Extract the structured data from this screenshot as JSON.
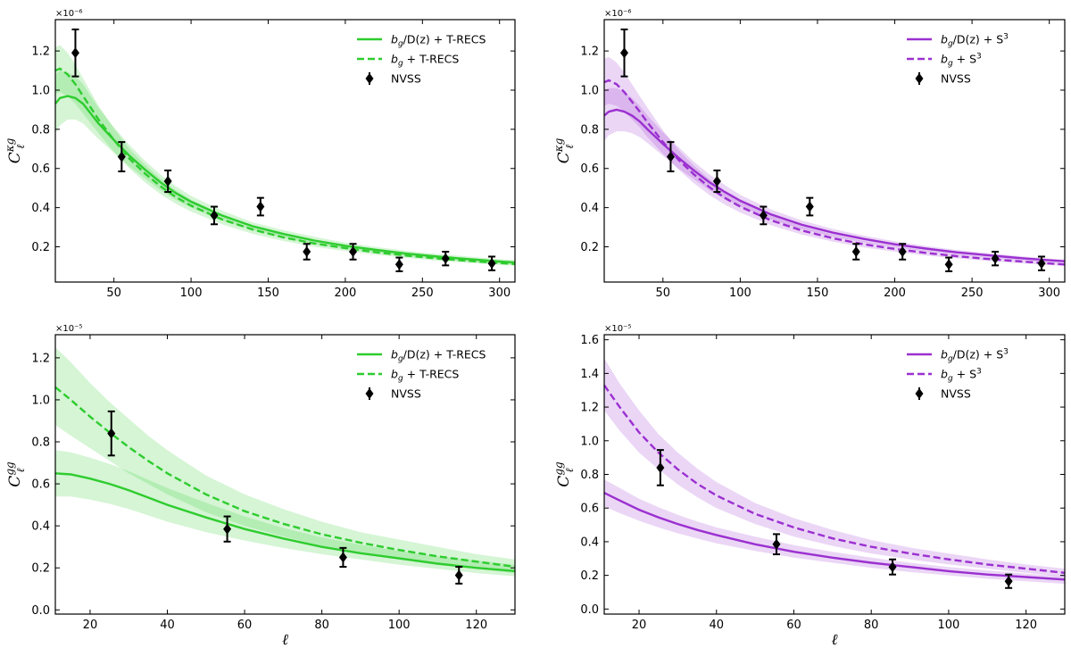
{
  "chart_data": [
    {
      "id": "kg_trecs",
      "type": "line",
      "ylabel": "C_ℓ^κg",
      "xlabel": "",
      "offset_label": "×10⁻⁶",
      "xlim": [
        12,
        310
      ],
      "ylim": [
        0.02,
        1.36
      ],
      "xticks": [
        50,
        100,
        150,
        200,
        250,
        300
      ],
      "xtick_labels": [
        "50",
        "100",
        "150",
        "200",
        "250",
        "300"
      ],
      "yticks": [
        0.2,
        0.4,
        0.6,
        0.8,
        1.0,
        1.2
      ],
      "ytick_labels": [
        "0.2",
        "0.4",
        "0.6",
        "0.8",
        "1.0",
        "1.2"
      ],
      "color": "#2ecc2e",
      "series": [
        {
          "name": "solid",
          "legend_label": "b_g/D(z) + T-RECS",
          "style": "solid",
          "x": [
            12,
            15,
            20,
            25,
            30,
            35,
            40,
            50,
            60,
            70,
            80,
            90,
            100,
            120,
            140,
            160,
            180,
            200,
            220,
            240,
            260,
            280,
            300,
            310
          ],
          "y": [
            0.93,
            0.96,
            0.97,
            0.96,
            0.93,
            0.88,
            0.83,
            0.745,
            0.665,
            0.595,
            0.53,
            0.475,
            0.43,
            0.36,
            0.305,
            0.265,
            0.232,
            0.205,
            0.184,
            0.165,
            0.15,
            0.137,
            0.125,
            0.12
          ],
          "lower": [
            0.78,
            0.82,
            0.85,
            0.85,
            0.83,
            0.79,
            0.75,
            0.68,
            0.61,
            0.55,
            0.49,
            0.44,
            0.4,
            0.335,
            0.285,
            0.245,
            0.213,
            0.189,
            0.169,
            0.151,
            0.137,
            0.124,
            0.113,
            0.108
          ],
          "upper": [
            1.08,
            1.1,
            1.09,
            1.07,
            1.03,
            0.97,
            0.91,
            0.81,
            0.72,
            0.64,
            0.57,
            0.51,
            0.46,
            0.385,
            0.325,
            0.285,
            0.251,
            0.221,
            0.199,
            0.179,
            0.163,
            0.15,
            0.137,
            0.132
          ]
        },
        {
          "name": "dashed",
          "legend_label": "b_g + T-RECS",
          "style": "dashed",
          "x": [
            12,
            15,
            20,
            25,
            30,
            35,
            40,
            50,
            60,
            70,
            80,
            90,
            100,
            120,
            140,
            160,
            180,
            200,
            220,
            240,
            260,
            280,
            300,
            310
          ],
          "y": [
            1.1,
            1.11,
            1.08,
            1.03,
            0.97,
            0.91,
            0.85,
            0.745,
            0.65,
            0.575,
            0.51,
            0.455,
            0.41,
            0.34,
            0.288,
            0.248,
            0.217,
            0.193,
            0.172,
            0.155,
            0.14,
            0.128,
            0.117,
            0.112
          ],
          "lower": [
            0.98,
            0.99,
            0.97,
            0.93,
            0.88,
            0.83,
            0.78,
            0.685,
            0.6,
            0.53,
            0.47,
            0.42,
            0.38,
            0.315,
            0.266,
            0.229,
            0.2,
            0.178,
            0.159,
            0.143,
            0.129,
            0.118,
            0.108,
            0.103
          ],
          "upper": [
            1.22,
            1.23,
            1.19,
            1.13,
            1.06,
            0.99,
            0.92,
            0.805,
            0.7,
            0.62,
            0.55,
            0.49,
            0.44,
            0.365,
            0.31,
            0.267,
            0.234,
            0.208,
            0.185,
            0.167,
            0.151,
            0.138,
            0.126,
            0.121
          ]
        }
      ],
      "points": {
        "name": "NVSS",
        "x": [
          25,
          55,
          85,
          115,
          145,
          175,
          205,
          235,
          265,
          295
        ],
        "y": [
          1.19,
          0.66,
          0.535,
          0.36,
          0.405,
          0.175,
          0.175,
          0.11,
          0.14,
          0.115
        ],
        "err": [
          0.12,
          0.075,
          0.055,
          0.045,
          0.045,
          0.04,
          0.04,
          0.035,
          0.035,
          0.035
        ]
      },
      "legend": [
        "b_g/D(z) + T-RECS",
        "b_g + T-RECS",
        "NVSS"
      ]
    },
    {
      "id": "kg_s3",
      "type": "line",
      "ylabel": "C_ℓ^κg",
      "xlabel": "",
      "offset_label": "×10⁻⁶",
      "xlim": [
        12,
        310
      ],
      "ylim": [
        0.02,
        1.36
      ],
      "xticks": [
        50,
        100,
        150,
        200,
        250,
        300
      ],
      "xtick_labels": [
        "50",
        "100",
        "150",
        "200",
        "250",
        "300"
      ],
      "yticks": [
        0.2,
        0.4,
        0.6,
        0.8,
        1.0,
        1.2
      ],
      "ytick_labels": [
        "0.2",
        "0.4",
        "0.6",
        "0.8",
        "1.0",
        "1.2"
      ],
      "color": "#9b30d0",
      "series": [
        {
          "name": "solid",
          "legend_label": "b_g/D(z) + S^3",
          "style": "solid",
          "x": [
            12,
            15,
            20,
            25,
            30,
            35,
            40,
            50,
            60,
            70,
            80,
            90,
            100,
            120,
            140,
            160,
            180,
            200,
            220,
            240,
            260,
            280,
            300,
            310
          ],
          "y": [
            0.87,
            0.89,
            0.9,
            0.89,
            0.87,
            0.84,
            0.8,
            0.725,
            0.655,
            0.59,
            0.53,
            0.48,
            0.435,
            0.365,
            0.312,
            0.272,
            0.24,
            0.213,
            0.191,
            0.172,
            0.157,
            0.143,
            0.131,
            0.126
          ],
          "lower": [
            0.74,
            0.77,
            0.79,
            0.79,
            0.78,
            0.76,
            0.73,
            0.665,
            0.6,
            0.545,
            0.49,
            0.445,
            0.405,
            0.34,
            0.29,
            0.253,
            0.223,
            0.198,
            0.178,
            0.16,
            0.146,
            0.133,
            0.122,
            0.117
          ],
          "upper": [
            1.0,
            1.01,
            1.01,
            0.99,
            0.96,
            0.92,
            0.87,
            0.785,
            0.71,
            0.635,
            0.57,
            0.515,
            0.465,
            0.39,
            0.334,
            0.291,
            0.257,
            0.228,
            0.204,
            0.184,
            0.168,
            0.153,
            0.14,
            0.135
          ]
        },
        {
          "name": "dashed",
          "legend_label": "b_g + S^3",
          "style": "dashed",
          "x": [
            12,
            15,
            20,
            25,
            30,
            35,
            40,
            50,
            60,
            70,
            80,
            90,
            100,
            120,
            140,
            160,
            180,
            200,
            220,
            240,
            260,
            280,
            300,
            310
          ],
          "y": [
            1.04,
            1.05,
            1.03,
            0.99,
            0.94,
            0.89,
            0.835,
            0.735,
            0.645,
            0.57,
            0.505,
            0.45,
            0.405,
            0.335,
            0.283,
            0.244,
            0.213,
            0.189,
            0.169,
            0.152,
            0.138,
            0.126,
            0.115,
            0.11
          ],
          "lower": [
            0.92,
            0.93,
            0.92,
            0.89,
            0.85,
            0.81,
            0.76,
            0.675,
            0.595,
            0.525,
            0.465,
            0.415,
            0.375,
            0.31,
            0.262,
            0.226,
            0.197,
            0.175,
            0.156,
            0.141,
            0.128,
            0.117,
            0.107,
            0.102
          ],
          "upper": [
            1.16,
            1.17,
            1.14,
            1.09,
            1.03,
            0.97,
            0.91,
            0.795,
            0.695,
            0.615,
            0.545,
            0.485,
            0.435,
            0.36,
            0.304,
            0.262,
            0.229,
            0.203,
            0.182,
            0.163,
            0.148,
            0.135,
            0.123,
            0.118
          ]
        }
      ],
      "points": {
        "name": "NVSS",
        "x": [
          25,
          55,
          85,
          115,
          145,
          175,
          205,
          235,
          265,
          295
        ],
        "y": [
          1.19,
          0.66,
          0.535,
          0.36,
          0.405,
          0.175,
          0.175,
          0.11,
          0.14,
          0.115
        ],
        "err": [
          0.12,
          0.075,
          0.055,
          0.045,
          0.045,
          0.04,
          0.04,
          0.035,
          0.035,
          0.035
        ]
      },
      "legend": [
        "b_g/D(z) + S^3",
        "b_g + S^3",
        "NVSS"
      ]
    },
    {
      "id": "gg_trecs",
      "type": "line",
      "ylabel": "C_ℓ^gg",
      "xlabel": "ℓ",
      "offset_label": "×10⁻⁵",
      "xlim": [
        11,
        130
      ],
      "ylim": [
        -0.02,
        1.31
      ],
      "xticks": [
        20,
        40,
        60,
        80,
        100,
        120
      ],
      "xtick_labels": [
        "20",
        "40",
        "60",
        "80",
        "100",
        "120"
      ],
      "yticks": [
        0.0,
        0.2,
        0.4,
        0.6,
        0.8,
        1.0,
        1.2
      ],
      "ytick_labels": [
        "0.0",
        "0.2",
        "0.4",
        "0.6",
        "0.8",
        "1.0",
        "1.2"
      ],
      "color": "#2ecc2e",
      "series": [
        {
          "name": "solid",
          "legend_label": "b_g/D(z) + T-RECS",
          "style": "solid",
          "x": [
            11,
            15,
            20,
            25,
            30,
            35,
            40,
            50,
            60,
            70,
            80,
            90,
            100,
            110,
            120,
            130
          ],
          "y": [
            0.65,
            0.645,
            0.625,
            0.6,
            0.57,
            0.535,
            0.5,
            0.44,
            0.385,
            0.34,
            0.3,
            0.27,
            0.245,
            0.22,
            0.2,
            0.185
          ],
          "lower": [
            0.54,
            0.54,
            0.525,
            0.505,
            0.48,
            0.45,
            0.42,
            0.37,
            0.33,
            0.295,
            0.265,
            0.24,
            0.215,
            0.195,
            0.175,
            0.16
          ],
          "upper": [
            0.76,
            0.75,
            0.725,
            0.695,
            0.66,
            0.62,
            0.58,
            0.51,
            0.445,
            0.39,
            0.345,
            0.31,
            0.28,
            0.255,
            0.235,
            0.215
          ]
        },
        {
          "name": "dashed",
          "legend_label": "b_g + T-RECS",
          "style": "dashed",
          "x": [
            11,
            15,
            20,
            25,
            30,
            35,
            40,
            50,
            60,
            70,
            80,
            90,
            100,
            110,
            120,
            130
          ],
          "y": [
            1.06,
            1.0,
            0.92,
            0.845,
            0.775,
            0.71,
            0.65,
            0.55,
            0.47,
            0.41,
            0.36,
            0.32,
            0.285,
            0.255,
            0.23,
            0.205
          ],
          "lower": [
            0.88,
            0.83,
            0.77,
            0.71,
            0.65,
            0.6,
            0.55,
            0.465,
            0.4,
            0.35,
            0.305,
            0.27,
            0.24,
            0.215,
            0.195,
            0.175
          ],
          "upper": [
            1.25,
            1.18,
            1.08,
            0.99,
            0.91,
            0.83,
            0.76,
            0.64,
            0.55,
            0.48,
            0.42,
            0.37,
            0.335,
            0.3,
            0.265,
            0.24
          ]
        }
      ],
      "points": {
        "name": "NVSS",
        "x": [
          25.5,
          55.5,
          85.5,
          115.5
        ],
        "y": [
          0.84,
          0.385,
          0.25,
          0.165
        ],
        "err": [
          0.105,
          0.06,
          0.045,
          0.04
        ]
      },
      "legend": [
        "b_g/D(z) + T-RECS",
        "b_g + T-RECS",
        "NVSS"
      ]
    },
    {
      "id": "gg_s3",
      "type": "line",
      "ylabel": "C_ℓ^gg",
      "xlabel": "ℓ",
      "offset_label": "×10⁻⁵",
      "xlim": [
        11,
        130
      ],
      "ylim": [
        -0.03,
        1.63
      ],
      "xticks": [
        20,
        40,
        60,
        80,
        100,
        120
      ],
      "xtick_labels": [
        "20",
        "40",
        "60",
        "80",
        "100",
        "120"
      ],
      "yticks": [
        0.0,
        0.2,
        0.4,
        0.6,
        0.8,
        1.0,
        1.2,
        1.4,
        1.6
      ],
      "ytick_labels": [
        "0.0",
        "0.2",
        "0.4",
        "0.6",
        "0.8",
        "1.0",
        "1.2",
        "1.4",
        "1.6"
      ],
      "color": "#9b30d0",
      "series": [
        {
          "name": "solid",
          "legend_label": "b_g/D(z) + S^3",
          "style": "solid",
          "x": [
            11,
            15,
            20,
            25,
            30,
            35,
            40,
            50,
            60,
            70,
            80,
            90,
            100,
            110,
            120,
            130
          ],
          "y": [
            0.69,
            0.645,
            0.59,
            0.545,
            0.505,
            0.47,
            0.44,
            0.385,
            0.34,
            0.305,
            0.275,
            0.25,
            0.225,
            0.205,
            0.19,
            0.175
          ],
          "lower": [
            0.61,
            0.57,
            0.525,
            0.485,
            0.45,
            0.42,
            0.39,
            0.345,
            0.305,
            0.275,
            0.245,
            0.22,
            0.2,
            0.18,
            0.165,
            0.15
          ],
          "upper": [
            0.77,
            0.72,
            0.655,
            0.605,
            0.56,
            0.52,
            0.485,
            0.43,
            0.38,
            0.34,
            0.305,
            0.275,
            0.25,
            0.23,
            0.21,
            0.195
          ]
        },
        {
          "name": "dashed",
          "legend_label": "b_g + S^3",
          "style": "dashed",
          "x": [
            11,
            15,
            20,
            25,
            30,
            35,
            40,
            50,
            60,
            70,
            80,
            90,
            100,
            110,
            120,
            130
          ],
          "y": [
            1.33,
            1.2,
            1.05,
            0.93,
            0.83,
            0.745,
            0.675,
            0.565,
            0.485,
            0.42,
            0.37,
            0.33,
            0.295,
            0.265,
            0.24,
            0.215
          ],
          "lower": [
            1.18,
            1.06,
            0.93,
            0.83,
            0.74,
            0.665,
            0.6,
            0.505,
            0.43,
            0.375,
            0.33,
            0.295,
            0.265,
            0.24,
            0.215,
            0.19
          ],
          "upper": [
            1.49,
            1.34,
            1.18,
            1.04,
            0.93,
            0.835,
            0.755,
            0.63,
            0.54,
            0.47,
            0.41,
            0.365,
            0.33,
            0.295,
            0.265,
            0.24
          ]
        }
      ],
      "points": {
        "name": "NVSS",
        "x": [
          25.5,
          55.5,
          85.5,
          115.5
        ],
        "y": [
          0.84,
          0.385,
          0.25,
          0.165
        ],
        "err": [
          0.105,
          0.06,
          0.045,
          0.04
        ]
      },
      "legend": [
        "b_g/D(z) + S^3",
        "b_g + S^3",
        "NVSS"
      ]
    }
  ]
}
